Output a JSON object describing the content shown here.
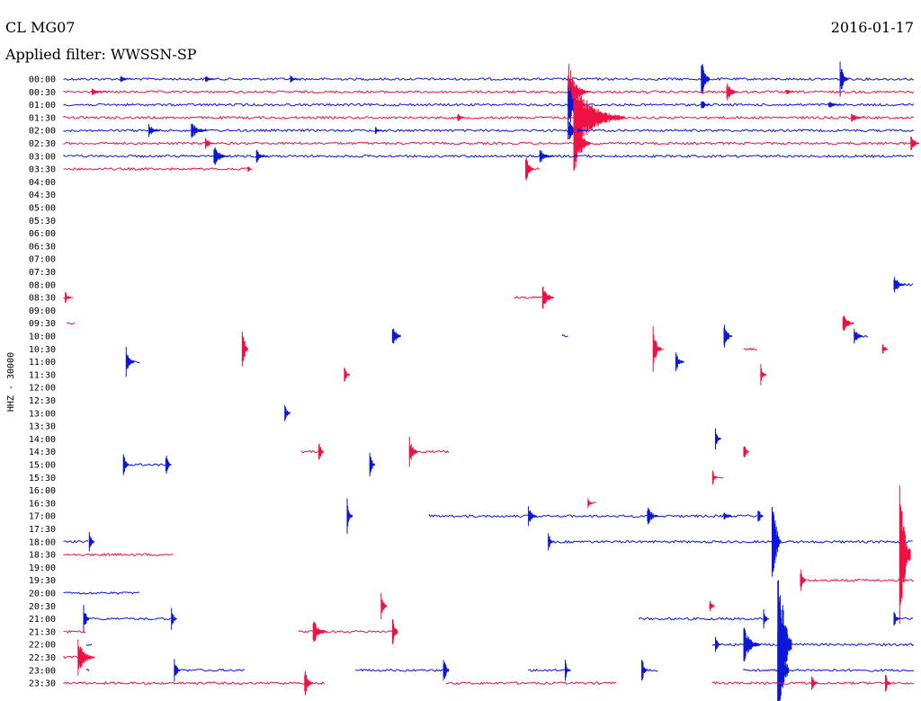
{
  "header": {
    "station": "CL MG07",
    "date": "2016-01-17",
    "filter": "Applied filter: WWSSN-SP"
  },
  "colors": {
    "blue": "#0a16d8",
    "red": "#ef1144",
    "text": "#000000"
  },
  "chart_data": {
    "type": "line",
    "title": "CL MG07",
    "subtitle": "Applied filter: WWSSN-SP",
    "ylabel": "HHZ - 30000",
    "xlabel": "",
    "row_minutes": 30,
    "x_range_minutes": [
      0,
      30
    ],
    "series_colors_alternate": [
      "blue",
      "red"
    ],
    "rows": [
      {
        "label": "00:00",
        "color": "blue",
        "segments": [
          [
            0,
            30
          ]
        ],
        "events": [
          [
            22.5,
            0.8,
            0.3
          ],
          [
            27.4,
            0.5,
            0.3
          ],
          [
            2.0,
            0.1,
            0.4
          ],
          [
            5.0,
            0.1,
            0.4
          ],
          [
            8.0,
            0.1,
            0.4
          ]
        ]
      },
      {
        "label": "00:30",
        "color": "red",
        "segments": [
          [
            0,
            30
          ]
        ],
        "events": [
          [
            17.8,
            0.9,
            0.6
          ],
          [
            23.4,
            0.3,
            0.4
          ],
          [
            1.0,
            0.1,
            0.5
          ],
          [
            18.3,
            0.1,
            0.4
          ],
          [
            25.5,
            0.1,
            0.3
          ]
        ]
      },
      {
        "label": "01:00",
        "color": "blue",
        "segments": [
          [
            0,
            30
          ]
        ],
        "events": [
          [
            17.8,
            0.7,
            0.6
          ],
          [
            27.0,
            0.1,
            0.5
          ],
          [
            22.5,
            0.2,
            0.3
          ]
        ]
      },
      {
        "label": "01:30",
        "color": "red",
        "segments": [
          [
            0,
            30
          ]
        ],
        "events": [
          [
            18.0,
            1.0,
            1.8
          ],
          [
            13.9,
            0.15,
            0.3
          ],
          [
            27.8,
            0.15,
            0.5
          ]
        ]
      },
      {
        "label": "02:00",
        "color": "blue",
        "segments": [
          [
            0,
            30
          ]
        ],
        "events": [
          [
            3.0,
            0.2,
            0.4
          ],
          [
            4.5,
            0.25,
            0.6
          ],
          [
            17.8,
            0.3,
            0.6
          ],
          [
            11.0,
            0.1,
            0.3
          ]
        ]
      },
      {
        "label": "02:30",
        "color": "red",
        "segments": [
          [
            0,
            30
          ]
        ],
        "events": [
          [
            18.0,
            0.9,
            0.6
          ],
          [
            5.0,
            0.15,
            0.4
          ],
          [
            29.9,
            0.3,
            0.3
          ]
        ]
      },
      {
        "label": "03:00",
        "color": "blue",
        "segments": [
          [
            0,
            30
          ]
        ],
        "events": [
          [
            5.3,
            0.3,
            0.5
          ],
          [
            6.8,
            0.2,
            0.4
          ],
          [
            16.8,
            0.2,
            0.5
          ]
        ]
      },
      {
        "label": "03:30",
        "color": "red",
        "segments": [
          [
            0,
            6.6
          ],
          [
            16.3,
            16.8
          ]
        ],
        "events": [
          [
            6.5,
            0.1,
            0.2
          ],
          [
            16.3,
            0.4,
            0.3
          ]
        ]
      },
      {
        "label": "04:00",
        "color": "blue",
        "segments": [],
        "events": []
      },
      {
        "label": "04:30",
        "color": "red",
        "segments": [],
        "events": []
      },
      {
        "label": "05:00",
        "color": "blue",
        "segments": [],
        "events": []
      },
      {
        "label": "05:30",
        "color": "red",
        "segments": [],
        "events": []
      },
      {
        "label": "06:00",
        "color": "blue",
        "segments": [],
        "events": []
      },
      {
        "label": "06:30",
        "color": "red",
        "segments": [],
        "events": []
      },
      {
        "label": "07:00",
        "color": "blue",
        "segments": [],
        "events": []
      },
      {
        "label": "07:30",
        "color": "red",
        "segments": [],
        "events": []
      },
      {
        "label": "08:00",
        "color": "blue",
        "segments": [
          [
            29.3,
            30
          ]
        ],
        "events": [
          [
            29.3,
            0.3,
            0.4
          ]
        ]
      },
      {
        "label": "08:30",
        "color": "red",
        "segments": [
          [
            0,
            0.2
          ],
          [
            15.9,
            17.0
          ]
        ],
        "events": [
          [
            0.05,
            0.15,
            0.3
          ],
          [
            16.9,
            0.4,
            0.4
          ]
        ]
      },
      {
        "label": "09:00",
        "color": "blue",
        "segments": [],
        "events": []
      },
      {
        "label": "09:30",
        "color": "red",
        "segments": [
          [
            0.1,
            0.4
          ]
        ],
        "events": [
          [
            27.5,
            0.3,
            0.4
          ]
        ]
      },
      {
        "label": "10:00",
        "color": "blue",
        "segments": [
          [
            11.6,
            11.9
          ],
          [
            17.6,
            17.8
          ],
          [
            23.3,
            23.5
          ],
          [
            27.9,
            28.4
          ]
        ],
        "events": [
          [
            11.6,
            0.4,
            0.3
          ],
          [
            23.3,
            0.4,
            0.3
          ],
          [
            27.9,
            0.3,
            0.3
          ]
        ]
      },
      {
        "label": "10:30",
        "color": "red",
        "segments": [
          [
            6.3,
            6.4
          ],
          [
            20.8,
            21.2
          ],
          [
            24.0,
            24.5
          ],
          [
            28.9,
            29.0
          ]
        ],
        "events": [
          [
            6.3,
            0.8,
            0.2
          ],
          [
            20.8,
            0.6,
            0.3
          ],
          [
            28.9,
            0.2,
            0.2
          ]
        ]
      },
      {
        "label": "11:00",
        "color": "blue",
        "segments": [
          [
            2.2,
            2.7
          ],
          [
            21.6,
            21.8
          ]
        ],
        "events": [
          [
            2.2,
            0.4,
            0.3
          ],
          [
            21.6,
            0.3,
            0.3
          ]
        ]
      },
      {
        "label": "11:30",
        "color": "red",
        "segments": [
          [
            9.9,
            10.0
          ],
          [
            24.6,
            24.8
          ]
        ],
        "events": [
          [
            9.9,
            0.3,
            0.2
          ],
          [
            24.6,
            0.3,
            0.2
          ]
        ]
      },
      {
        "label": "12:00",
        "color": "blue",
        "segments": [],
        "events": []
      },
      {
        "label": "12:30",
        "color": "red",
        "segments": [],
        "events": []
      },
      {
        "label": "13:00",
        "color": "blue",
        "segments": [
          [
            7.8,
            8.0
          ]
        ],
        "events": [
          [
            7.8,
            0.3,
            0.2
          ]
        ]
      },
      {
        "label": "13:30",
        "color": "red",
        "segments": [],
        "events": []
      },
      {
        "label": "14:00",
        "color": "blue",
        "segments": [
          [
            23.0,
            23.2
          ]
        ],
        "events": [
          [
            23.0,
            0.3,
            0.2
          ]
        ]
      },
      {
        "label": "14:30",
        "color": "red",
        "segments": [
          [
            8.4,
            9.0
          ],
          [
            12.2,
            13.6
          ],
          [
            24.0,
            24.1
          ]
        ],
        "events": [
          [
            9.0,
            0.4,
            0.2
          ],
          [
            12.2,
            0.5,
            0.3
          ],
          [
            24.0,
            0.3,
            0.2
          ]
        ]
      },
      {
        "label": "15:00",
        "color": "blue",
        "segments": [
          [
            2.1,
            3.6
          ],
          [
            10.8,
            10.9
          ]
        ],
        "events": [
          [
            2.1,
            0.4,
            0.2
          ],
          [
            3.6,
            0.4,
            0.2
          ],
          [
            10.8,
            0.4,
            0.2
          ]
        ]
      },
      {
        "label": "15:30",
        "color": "red",
        "segments": [
          [
            22.9,
            23.3
          ]
        ],
        "events": [
          [
            22.9,
            0.2,
            0.2
          ]
        ]
      },
      {
        "label": "16:00",
        "color": "blue",
        "segments": [],
        "events": []
      },
      {
        "label": "16:30",
        "color": "red",
        "segments": [
          [
            18.5,
            18.8
          ]
        ],
        "events": [
          [
            18.5,
            0.2,
            0.2
          ]
        ]
      },
      {
        "label": "17:00",
        "color": "blue",
        "segments": [
          [
            10.0,
            10.1
          ],
          [
            12.9,
            24.5
          ]
        ],
        "events": [
          [
            10.0,
            0.5,
            0.2
          ],
          [
            16.4,
            0.3,
            0.3
          ],
          [
            20.6,
            0.3,
            0.4
          ],
          [
            23.3,
            0.2,
            0.3
          ],
          [
            24.5,
            0.3,
            0.2
          ]
        ]
      },
      {
        "label": "17:30",
        "color": "red",
        "segments": [],
        "events": []
      },
      {
        "label": "18:00",
        "color": "blue",
        "segments": [
          [
            0,
            0.9
          ],
          [
            17.1,
            30
          ]
        ],
        "events": [
          [
            25.0,
            2.0,
            0.3
          ],
          [
            17.1,
            0.3,
            0.2
          ],
          [
            0.9,
            0.3,
            0.2
          ]
        ]
      },
      {
        "label": "18:30",
        "color": "red",
        "segments": [
          [
            0,
            3.9
          ]
        ],
        "events": [
          [
            29.5,
            2.5,
            0.4
          ]
        ]
      },
      {
        "label": "19:00",
        "color": "blue",
        "segments": [],
        "events": []
      },
      {
        "label": "19:30",
        "color": "red",
        "segments": [
          [
            26.0,
            30
          ]
        ],
        "events": [
          [
            26.0,
            0.4,
            0.2
          ]
        ]
      },
      {
        "label": "20:00",
        "color": "blue",
        "segments": [
          [
            0,
            2.7
          ]
        ],
        "events": []
      },
      {
        "label": "20:30",
        "color": "red",
        "segments": [
          [
            11.2,
            11.4
          ],
          [
            22.8,
            22.9
          ]
        ],
        "events": [
          [
            11.2,
            0.5,
            0.2
          ],
          [
            22.8,
            0.2,
            0.2
          ]
        ]
      },
      {
        "label": "21:00",
        "color": "blue",
        "segments": [
          [
            0.7,
            3.8
          ],
          [
            20.3,
            24.7
          ],
          [
            29.3,
            30
          ]
        ],
        "events": [
          [
            0.7,
            0.5,
            0.2
          ],
          [
            3.8,
            0.3,
            0.2
          ],
          [
            24.7,
            0.3,
            0.2
          ],
          [
            29.3,
            0.3,
            0.2
          ]
        ]
      },
      {
        "label": "21:30",
        "color": "red",
        "segments": [
          [
            0,
            0.8
          ],
          [
            8.3,
            11.7
          ]
        ],
        "events": [
          [
            8.8,
            0.4,
            0.5
          ],
          [
            11.6,
            0.6,
            0.2
          ]
        ]
      },
      {
        "label": "22:00",
        "color": "blue",
        "segments": [
          [
            0.8,
            1.0
          ],
          [
            22.9,
            30
          ]
        ],
        "events": [
          [
            24.0,
            0.5,
            0.6
          ],
          [
            25.2,
            3.0,
            0.5
          ],
          [
            23.0,
            0.3,
            0.2
          ]
        ]
      },
      {
        "label": "22:30",
        "color": "red",
        "segments": [
          [
            0,
            0.7
          ]
        ],
        "events": [
          [
            0.5,
            0.5,
            0.6
          ]
        ]
      },
      {
        "label": "23:00",
        "color": "blue",
        "segments": [
          [
            0.8,
            0.9
          ],
          [
            3.9,
            6.4
          ],
          [
            10.3,
            13.4
          ],
          [
            16.4,
            17.7
          ],
          [
            20.4,
            21.0
          ],
          [
            24.0,
            30
          ]
        ],
        "events": [
          [
            3.9,
            0.4,
            0.2
          ],
          [
            13.4,
            0.5,
            0.2
          ],
          [
            17.7,
            0.3,
            0.2
          ],
          [
            20.4,
            0.4,
            0.2
          ],
          [
            25.2,
            2.0,
            0.4
          ]
        ]
      },
      {
        "label": "23:30",
        "color": "red",
        "segments": [
          [
            0,
            9.2
          ],
          [
            13.5,
            19.5
          ],
          [
            22.9,
            30
          ]
        ],
        "events": [
          [
            8.5,
            0.4,
            0.3
          ],
          [
            26.4,
            0.3,
            0.2
          ],
          [
            29.0,
            0.3,
            0.2
          ]
        ]
      }
    ]
  }
}
